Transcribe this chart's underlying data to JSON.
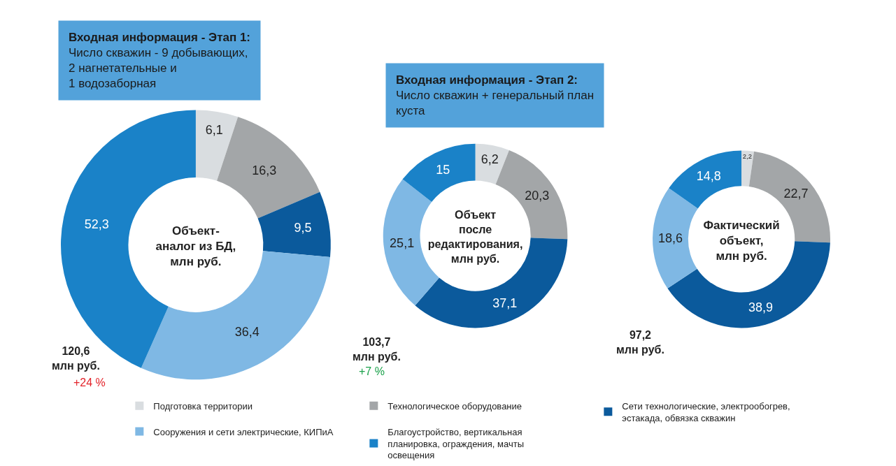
{
  "chart_data": [
    {
      "type": "donut",
      "title": "Объект-\nаналог из БД,\nмлн руб.",
      "categories": [
        "Подготовка территории",
        "Технологическое оборудование",
        "Сети технологические, электрообогрев,\nэстакада, обвязка скважин",
        "Сооружения и сети электрические, КИПиА",
        "Благоустройство, вертикальная\nпланировка, ограждения, мачты\nосвещения"
      ],
      "values": [
        6.1,
        16.3,
        9.5,
        36.4,
        52.3
      ],
      "value_labels": [
        "6,1",
        "16,3",
        "9,5",
        "36,4",
        "52,3"
      ],
      "colors": [
        "#d9dde0",
        "#a3a6a8",
        "#0b5a9c",
        "#7fb8e4",
        "#1a82c8"
      ],
      "legend": "bottom",
      "annotations": [
        "Входная информация - Этап 1:\nЧисло скважин - 9 добывающих,\n2 нагнетательные и\n1 водозаборная",
        "120,6\nмлн руб.",
        "+24 %"
      ]
    },
    {
      "type": "donut",
      "title": "Объект\nпосле\nредактирования,\nмлн руб.",
      "categories": [
        null,
        null,
        null,
        null,
        null
      ],
      "values": [
        6.2,
        20.3,
        37.1,
        25.1,
        15
      ],
      "value_labels": [
        "6,2",
        "20,3",
        "37,1",
        "25,1",
        "15"
      ],
      "colors": [
        "#d9dde0",
        "#a3a6a8",
        "#0b5a9c",
        "#7fb8e4",
        "#1a82c8"
      ],
      "annotations": [
        "Входная информация - Этап 2:\nЧисло скважин + генеральный план\nкуста",
        "103,7\nмлн руб.",
        "+7 %"
      ]
    },
    {
      "type": "donut",
      "title": "Фактический\nобъект,\nмлн руб.",
      "categories": [
        null,
        null,
        null,
        null,
        null
      ],
      "values": [
        2.2,
        22.7,
        38.9,
        18.6,
        14.8
      ],
      "value_labels": [
        "2,2",
        "22,7",
        "38,9",
        "18,6",
        "14,8"
      ],
      "colors": [
        "#d9dde0",
        "#a3a6a8",
        "#0b5a9c",
        "#7fb8e4",
        "#1a82c8"
      ],
      "annotations": [
        "97,2\nмлн руб."
      ]
    }
  ]
}
